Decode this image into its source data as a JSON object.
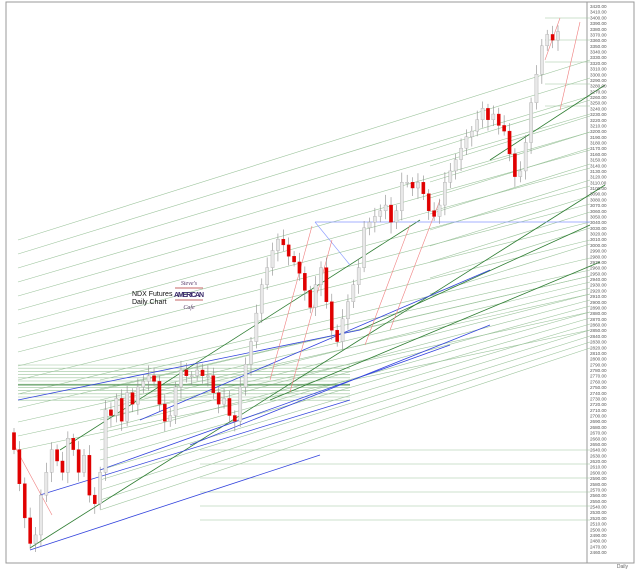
{
  "chart_data": {
    "type": "candlestick",
    "title_lines": [
      "NDX  Futures",
      "Daily Chart"
    ],
    "timeframe_label": "Daily",
    "ylim": [
      2455,
      3425
    ],
    "grid": false,
    "up_color": "#e8e8e8",
    "down_color": "#e00000",
    "wick_color": "#8a8a8a",
    "trendline_colors": {
      "light_green": "#9cc49c",
      "dark_green": "#2e7d32",
      "blue": "#3344dd",
      "pink": "#f08080",
      "horizontal_blue": "#8899ff"
    },
    "closes": [
      2640,
      2580,
      2520,
      2475,
      2490,
      2560,
      2600,
      2640,
      2620,
      2600,
      2660,
      2640,
      2600,
      2630,
      2560,
      2545,
      2600,
      2710,
      2700,
      2730,
      2690,
      2740,
      2720,
      2750,
      2760,
      2770,
      2760,
      2720,
      2690,
      2700,
      2750,
      2780,
      2770,
      2770,
      2780,
      2770,
      2770,
      2740,
      2720,
      2730,
      2700,
      2690,
      2750,
      2790,
      2830,
      2880,
      2930,
      2960,
      2990,
      3010,
      3000,
      2980,
      2970,
      2950,
      2920,
      2890,
      2930,
      2960,
      2900,
      2850,
      2830,
      2870,
      2900,
      2930,
      2960,
      3030,
      3040,
      3050,
      3060,
      3070,
      3040,
      3060,
      3110,
      3110,
      3100,
      3110,
      3090,
      3060,
      3050,
      3070,
      3110,
      3130,
      3150,
      3170,
      3190,
      3200,
      3220,
      3240,
      3220,
      3230,
      3210,
      3200,
      3160,
      3120,
      3130,
      3180,
      3250,
      3300,
      3350,
      3370,
      3360,
      3375
    ],
    "yticks": [
      3420,
      3410,
      3400,
      3390,
      3380,
      3370,
      3360,
      3350,
      3340,
      3330,
      3320,
      3310,
      3300,
      3290,
      3280,
      3270,
      3260,
      3250,
      3240,
      3230,
      3220,
      3210,
      3200,
      3190,
      3180,
      3170,
      3160,
      3150,
      3140,
      3130,
      3120,
      3110,
      3100,
      3090,
      3080,
      3070,
      3060,
      3050,
      3040,
      3030,
      3020,
      3010,
      3000,
      2990,
      2980,
      2970,
      2960,
      2950,
      2940,
      2930,
      2920,
      2910,
      2900,
      2890,
      2880,
      2870,
      2860,
      2850,
      2840,
      2830,
      2820,
      2810,
      2800,
      2790,
      2780,
      2770,
      2760,
      2750,
      2740,
      2730,
      2720,
      2710,
      2700,
      2690,
      2680,
      2670,
      2660,
      2650,
      2640,
      2630,
      2620,
      2610,
      2600,
      2590,
      2580,
      2570,
      2560,
      2550,
      2540,
      2530,
      2520,
      2510,
      2500,
      2490,
      2480,
      2470,
      2460
    ]
  },
  "logo": {
    "lines": [
      "Steve's",
      "AMERICAN",
      "Cafe"
    ]
  }
}
